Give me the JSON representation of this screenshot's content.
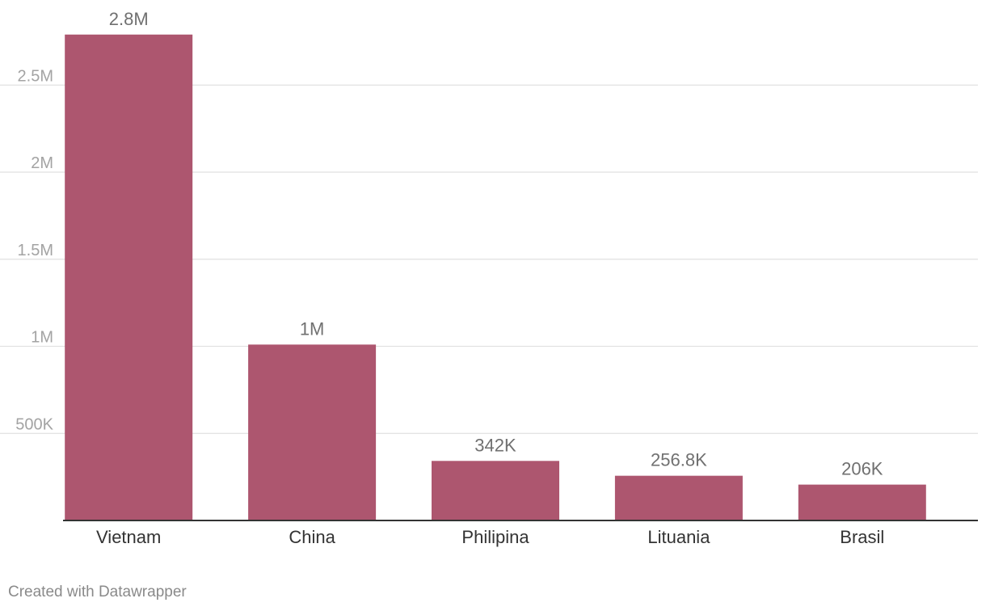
{
  "colors": {
    "bar": "#ad566f",
    "grid": "#e1e1e1",
    "axis_line": "#333333",
    "tick_label": "#a3a3a3",
    "category_label": "#333333",
    "value_label": "#707070",
    "credit": "#8a8a8a"
  },
  "chart_data": {
    "type": "bar",
    "title": "",
    "xlabel": "",
    "ylabel": "",
    "categories": [
      "Vietnam",
      "China",
      "Philipina",
      "Lituania",
      "Brasil"
    ],
    "values": [
      2790000,
      1010000,
      342000,
      256800,
      206000
    ],
    "value_labels": [
      "2.8M",
      "1M",
      "342K",
      "256.8K",
      "206K"
    ],
    "y_ticks": [
      500000,
      1000000,
      1500000,
      2000000,
      2500000
    ],
    "y_tick_labels": [
      "500K",
      "1M",
      "1.5M",
      "2M",
      "2.5M"
    ],
    "ylim": [
      0,
      2800000
    ],
    "grid": true,
    "legend": "none"
  },
  "footer": {
    "credit": "Created with Datawrapper"
  }
}
